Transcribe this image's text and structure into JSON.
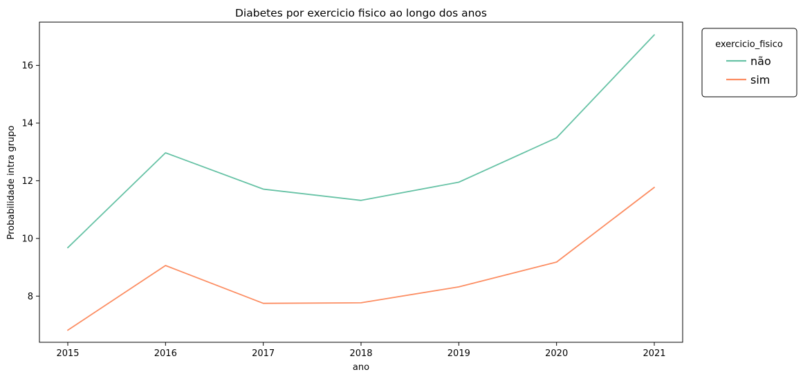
{
  "chart_data": {
    "type": "line",
    "title": "Diabetes por exercicio fisico ao longo dos anos",
    "xlabel": "ano",
    "ylabel": "Probabilidade intra grupo",
    "x": [
      2015,
      2016,
      2017,
      2018,
      2019,
      2020,
      2021
    ],
    "xticks": [
      "2015",
      "2016",
      "2017",
      "2018",
      "2019",
      "2020",
      "2021"
    ],
    "yticks": [
      "8",
      "10",
      "12",
      "14",
      "16"
    ],
    "ylim": [
      6.4,
      17.5
    ],
    "grid": false,
    "legend": {
      "title": "exercicio_fisico",
      "placement": "outside upper right"
    },
    "series": [
      {
        "name": "não",
        "color": "#66c2a5",
        "values": [
          9.68,
          12.97,
          11.71,
          11.32,
          11.95,
          13.49,
          17.06
        ]
      },
      {
        "name": "sim",
        "color": "#fc8d62",
        "values": [
          6.82,
          9.06,
          7.75,
          7.77,
          8.32,
          9.18,
          11.77
        ]
      }
    ]
  }
}
